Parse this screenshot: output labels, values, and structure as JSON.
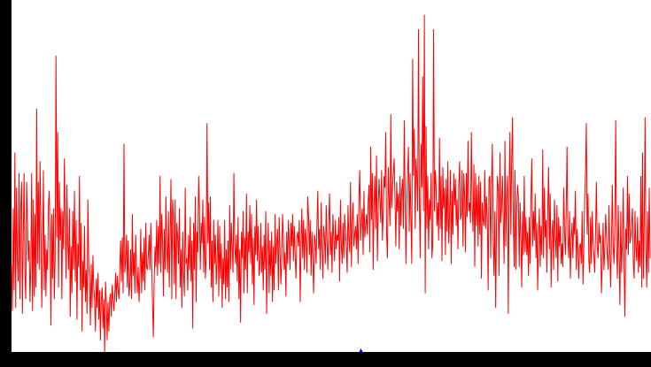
{
  "chart_data": {
    "type": "line",
    "title": "",
    "xlabel": "",
    "ylabel": "",
    "ylim": [
      0,
      120
    ],
    "grid": false,
    "legend": "none",
    "y_ticks": [
      "0",
      "12",
      "24",
      "36",
      "48",
      "60",
      "72",
      "84",
      "96",
      "108",
      "120"
    ],
    "x_ticks": [
      "14:01",
      "14:02",
      "14:03",
      "14:04",
      "14:05",
      "14:06",
      "14:07",
      "14:08",
      "14:09",
      "14:10",
      "14:11",
      "14:12",
      "14:13",
      "14:14",
      "14"
    ],
    "x_range": [
      "14:00:23",
      "14:15:00"
    ],
    "colors": {
      "background": "#000000",
      "plot_area": "#ffffff",
      "series": "#ff0000",
      "marker": "#0000aa",
      "text": "#000000"
    },
    "series": [
      {
        "values": [
          30,
          14,
          49,
          21,
          68,
          15,
          56,
          31,
          24,
          61,
          18,
          49,
          58,
          13,
          39,
          61,
          26,
          18,
          58,
          45,
          31,
          38,
          17,
          29,
          61,
          14,
          52,
          19,
          47,
          22,
          83,
          30,
          58,
          28,
          65,
          45,
          15,
          31,
          62,
          21,
          40,
          19,
          35,
          28,
          50,
          55,
          38,
          9,
          47,
          25,
          49,
          18,
          32,
          101,
          39,
          75,
          22,
          58,
          38,
          49,
          18,
          48,
          35,
          66,
          44,
          25,
          57,
          37,
          28,
          49,
          12,
          36,
          20,
          48,
          28,
          55,
          24,
          45,
          11,
          37,
          29,
          60,
          21,
          44,
          7,
          31,
          22,
          43,
          17,
          28,
          13,
          52,
          30,
          24,
          9,
          30,
          15,
          33,
          22,
          18,
          7,
          25,
          15,
          27,
          11,
          21,
          4,
          18,
          22,
          8,
          18,
          0,
          24,
          17,
          4,
          17,
          7,
          18,
          20,
          12,
          23,
          18,
          14,
          19,
          27,
          17,
          26,
          21,
          18,
          28,
          38,
          24,
          39,
          20,
          71,
          27,
          31,
          40,
          22,
          38,
          19,
          23,
          35,
          18,
          47,
          26,
          34,
          20,
          40,
          28,
          20,
          29,
          17,
          26,
          42,
          20,
          34,
          24,
          39,
          21,
          44,
          29,
          28,
          33,
          40,
          28,
          44,
          31,
          17,
          5,
          24,
          36,
          29,
          45,
          26,
          43,
          30,
          60,
          27,
          47,
          38,
          19,
          42,
          28,
          53,
          36,
          27,
          48,
          22,
          39,
          59,
          18,
          52,
          46,
          23,
          52,
          18,
          44,
          39,
          30,
          49,
          22,
          35,
          15,
          41,
          27,
          19,
          56,
          30,
          32,
          21,
          40,
          28,
          46,
          24,
          38,
          8,
          44,
          28,
          53,
          17,
          41,
          34,
          60,
          48,
          28,
          44,
          37,
          52,
          27,
          46,
          25,
          32,
          78,
          37,
          51,
          28,
          53,
          22,
          38,
          17,
          45,
          30,
          40,
          23,
          31,
          45,
          19,
          43,
          25,
          37,
          15,
          32,
          23,
          45,
          18,
          35,
          22,
          38,
          17,
          50,
          28,
          44,
          36,
          27,
          61,
          37,
          30,
          40,
          24,
          46,
          18,
          35,
          10,
          41,
          32,
          48,
          20,
          39,
          28,
          54,
          20,
          41,
          34,
          50,
          30,
          47,
          23,
          39,
          16,
          43,
          33,
          52,
          31,
          43,
          26,
          29,
          44,
          27,
          36,
          21,
          40,
          28,
          48,
          13,
          32,
          44,
          20,
          38,
          26,
          41,
          17,
          36,
          21,
          47,
          30,
          37,
          42,
          21,
          46,
          35,
          23,
          31,
          47,
          39,
          28,
          34,
          19,
          41,
          30,
          45,
          37,
          28,
          44,
          36,
          47,
          31,
          43,
          33,
          25,
          39,
          41,
          36,
          45,
          17,
          36,
          49,
          32,
          45,
          28,
          42,
          38,
          27,
          53,
          46,
          33,
          45,
          26,
          41,
          31,
          20,
          40,
          38,
          30,
          44,
          55,
          35,
          42,
          28,
          51,
          36,
          25,
          43,
          39,
          30,
          50,
          37,
          28,
          44,
          54,
          33,
          41,
          27,
          47,
          39,
          31,
          45,
          35,
          40,
          38,
          46,
          24,
          52,
          37,
          30,
          44,
          32,
          47,
          41,
          36,
          27,
          50,
          39,
          34,
          58,
          29,
          44,
          51,
          36,
          40,
          43,
          35,
          47,
          30,
          53,
          62,
          38,
          45,
          49,
          33,
          55,
          39,
          43,
          47,
          40,
          51,
          57,
          34,
          70,
          45,
          61,
          28,
          50,
          60,
          42,
          67,
          31,
          49,
          59,
          52,
          44,
          62,
          38,
          48,
          60,
          56,
          75,
          40,
          32,
          63,
          52,
          43,
          81,
          49,
          57,
          61,
          66,
          52,
          36,
          58,
          48,
          54,
          35,
          60,
          43,
          55,
          59,
          42,
          79,
          55,
          30,
          50,
          61,
          70,
          41,
          61,
          45,
          30,
          100,
          60,
          76,
          42,
          66,
          60,
          48,
          110,
          52,
          32,
          71,
          56,
          94,
          48,
          115,
          20,
          77,
          42,
          60,
          35,
          52,
          45,
          61,
          32,
          37,
          110,
          48,
          62,
          56,
          43,
          51,
          38,
          73,
          42,
          60,
          31,
          63,
          49,
          56,
          33,
          59,
          41,
          65,
          37,
          46,
          62,
          30,
          55,
          40,
          61,
          50,
          59,
          43,
          52,
          35,
          57,
          65,
          45,
          47,
          62,
          36,
          61,
          53,
          34,
          61,
          46,
          72,
          48,
          51,
          44,
          75,
          49,
          41,
          64,
          29,
          61,
          43,
          57,
          36,
          60,
          40,
          58,
          25,
          51,
          45,
          43,
          62,
          42,
          53,
          46,
          21,
          59,
          60,
          32,
          56,
          71,
          39,
          26,
          48,
          15,
          44,
          60,
          56,
          26,
          68,
          44,
          49,
          60,
          45,
          30,
          72,
          36,
          52,
          60,
          13,
          56,
          75,
          40,
          65,
          80,
          44,
          29,
          62,
          28,
          48,
          57,
          53,
          29,
          51,
          40,
          22,
          48,
          33,
          60,
          34,
          46,
          33,
          41,
          26,
          46,
          30,
          52,
          66,
          36,
          48,
          38,
          54,
          32,
          44,
          21,
          38,
          49,
          29,
          43,
          33,
          69,
          32,
          56,
          39,
          45,
          27,
          48,
          63,
          35,
          54,
          22,
          40,
          45,
          28,
          52,
          40,
          32,
          50,
          24,
          46,
          36,
          43,
          30,
          37,
          29,
          56,
          41,
          33,
          48,
          70,
          39,
          32,
          48,
          25,
          38,
          44,
          32,
          46,
          40,
          55,
          28,
          42,
          34,
          25,
          36,
          37,
          30,
          48,
          23,
          36,
          52,
          61,
          78,
          40,
          54,
          31,
          27,
          46,
          30,
          48,
          38,
          33,
          27,
          41,
          58,
          36,
          32,
          44,
          37,
          40,
          20,
          30,
          44,
          28,
          35,
          47,
          40,
          33,
          28,
          50,
          34,
          22,
          39,
          57,
          36,
          30,
          44,
          79,
          36,
          25,
          50,
          34,
          16,
          48,
          27,
          38,
          56,
          29,
          12,
          42,
          35,
          60,
          33,
          54,
          37,
          39,
          44,
          49,
          30,
          25,
          48,
          36,
          31,
          46,
          27,
          38,
          29,
          60,
          22,
          68,
          25,
          44,
          80,
          35,
          22,
          48,
          27,
          56,
          32
        ]
      }
    ]
  }
}
